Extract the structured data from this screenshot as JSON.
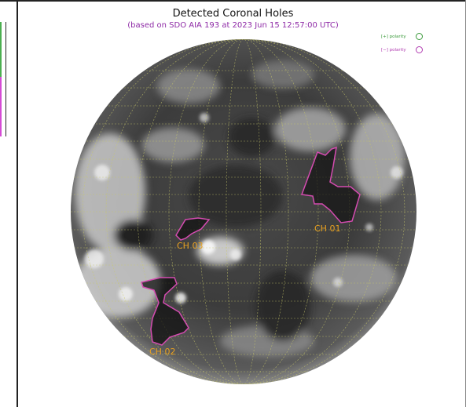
{
  "header": {
    "title": "Detected Coronal Holes",
    "subtitle": "(based on SDO AIA 193 at 2023 Jun 15 12:57:00 UTC)"
  },
  "legend": {
    "items": [
      {
        "label": "[+] polarity",
        "color": "#3a9a3a"
      },
      {
        "label": "[−] polarity",
        "color": "#b03ab0"
      }
    ]
  },
  "coronal_holes": [
    {
      "label": "CH 01"
    },
    {
      "label": "CH 02"
    },
    {
      "label": "CH 03"
    }
  ],
  "colors": {
    "contour": "#d44bb0",
    "label": "#e8a020",
    "grid": "#c9c96a"
  }
}
